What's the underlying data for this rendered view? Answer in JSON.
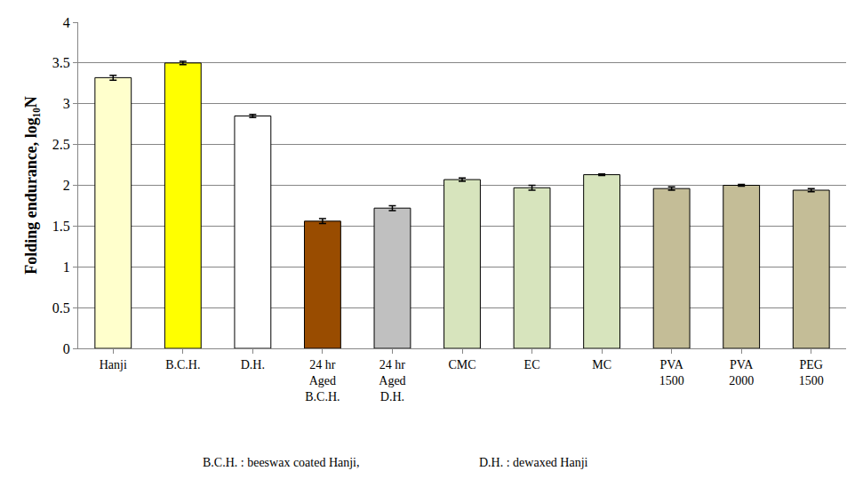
{
  "chart_data": {
    "type": "bar",
    "y_label": "Folding endurance, log₁₀N",
    "categories": [
      "Hanji",
      "B.C.H.",
      "D.H.",
      "24 hr\nAged\nB.C.H.",
      "24 hr\nAged\nD.H.",
      "CMC",
      "EC",
      "MC",
      "PVA\n1500",
      "PVA\n2000",
      "PEG\n1500"
    ],
    "values": [
      3.32,
      3.5,
      2.85,
      1.56,
      1.72,
      2.07,
      1.97,
      2.13,
      1.96,
      2.0,
      1.94
    ],
    "errors": [
      0.03,
      0.02,
      0.02,
      0.03,
      0.03,
      0.02,
      0.03,
      0.01,
      0.02,
      0.01,
      0.02
    ],
    "colors": [
      "#FFFFCC",
      "#FFFF00",
      "#FFFFFF",
      "#994C00",
      "#C0C0C0",
      "#D7E4BD",
      "#D7E4BD",
      "#D7E4BD",
      "#C4BD97",
      "#C4BD97",
      "#C4BD97"
    ],
    "ylim": [
      0,
      4
    ],
    "yticks": [
      0,
      0.5,
      1,
      1.5,
      2,
      2.5,
      3,
      3.5,
      4
    ],
    "grid": true,
    "notes": [
      "B.C.H. : beeswax coated Hanji,",
      "D.H. : dewaxed Hanji"
    ]
  }
}
